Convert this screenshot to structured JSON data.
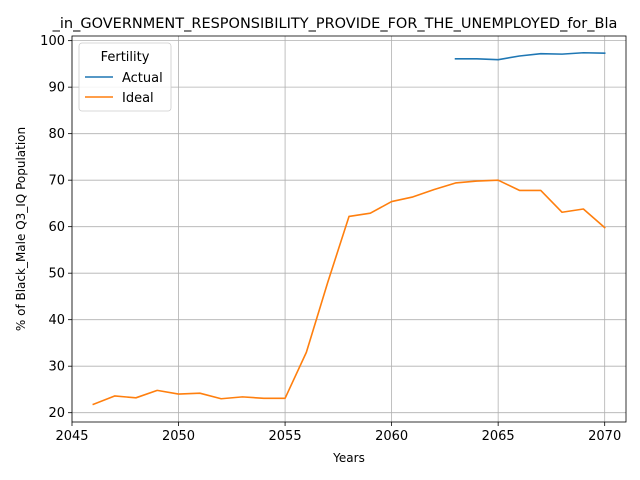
{
  "chart_data": {
    "type": "line",
    "title": "_in_GOVERNMENT_RESPONSIBILITY_PROVIDE_FOR_THE_UNEMPLOYED_for_Bla",
    "xlabel": "Years",
    "ylabel": "% of Black_Male Q3_IQ Population",
    "xlim": [
      2045,
      2071
    ],
    "ylim": [
      18,
      101
    ],
    "xticks": [
      2045,
      2050,
      2055,
      2060,
      2065,
      2070
    ],
    "yticks": [
      20,
      30,
      40,
      50,
      60,
      70,
      80,
      90,
      100
    ],
    "grid": true,
    "legend": {
      "title": "Fertility",
      "placement": "top-left"
    },
    "series": [
      {
        "name": "Actual",
        "color": "#1f77b4",
        "x": [
          2063,
          2064,
          2065,
          2066,
          2067,
          2068,
          2069,
          2070
        ],
        "y": [
          96.1,
          96.1,
          95.9,
          96.7,
          97.2,
          97.1,
          97.4,
          97.3
        ]
      },
      {
        "name": "Ideal",
        "color": "#ff7f0e",
        "x": [
          2046,
          2047,
          2048,
          2049,
          2050,
          2051,
          2052,
          2053,
          2054,
          2055,
          2056,
          2057,
          2058,
          2059,
          2060,
          2061,
          2062,
          2063,
          2064,
          2065,
          2066,
          2067,
          2068,
          2069,
          2070
        ],
        "y": [
          21.8,
          23.6,
          23.2,
          24.8,
          24.0,
          24.2,
          23.0,
          23.4,
          23.1,
          23.1,
          33.0,
          48.0,
          62.2,
          62.9,
          65.4,
          66.4,
          68.0,
          69.4,
          69.8,
          70.0,
          67.8,
          67.8,
          63.1,
          63.8,
          59.8
        ]
      }
    ]
  }
}
